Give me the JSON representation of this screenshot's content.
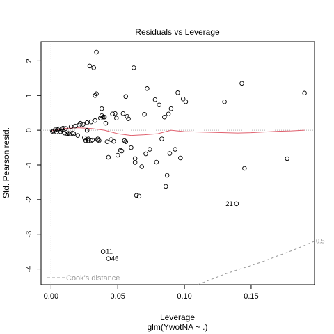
{
  "chart_data": {
    "type": "scatter",
    "title": "Residuals vs Leverage",
    "xlabel": "Leverage",
    "xsublabel": "glm(YwotNA ~ .)",
    "ylabel": "Std. Pearson resid.",
    "xlim": [
      -0.0075,
      0.1975
    ],
    "ylim": [
      -4.45,
      2.55
    ],
    "xticks": [
      0.0,
      0.05,
      0.1,
      0.15
    ],
    "xtick_labels": [
      "0.00",
      "0.05",
      "0.10",
      "0.15"
    ],
    "yticks": [
      -4,
      -3,
      -2,
      -1,
      0,
      1,
      2
    ],
    "ytick_labels": [
      "-4",
      "-3",
      "-2",
      "-1",
      "0",
      "1",
      "2"
    ],
    "grid": false,
    "points": [
      [
        0.001,
        -0.03
      ],
      [
        0.002,
        -0.02
      ],
      [
        0.003,
        0.01
      ],
      [
        0.004,
        -0.05
      ],
      [
        0.005,
        0.02
      ],
      [
        0.006,
        0.04
      ],
      [
        0.007,
        -0.04
      ],
      [
        0.008,
        0.03
      ],
      [
        0.009,
        0.06
      ],
      [
        0.01,
        -0.08
      ],
      [
        0.011,
        0.05
      ],
      [
        0.012,
        -0.1
      ],
      [
        0.013,
        -0.09
      ],
      [
        0.014,
        -0.11
      ],
      [
        0.015,
        0.1
      ],
      [
        0.016,
        -0.08
      ],
      [
        0.017,
        -0.1
      ],
      [
        0.018,
        0.12
      ],
      [
        0.02,
        -0.15
      ],
      [
        0.021,
        0.15
      ],
      [
        0.022,
        0.2
      ],
      [
        0.024,
        0.17
      ],
      [
        0.025,
        -0.22
      ],
      [
        0.026,
        -0.3
      ],
      [
        0.027,
        0.22
      ],
      [
        0.028,
        -0.3
      ],
      [
        0.028,
        -0.25
      ],
      [
        0.029,
        1.85
      ],
      [
        0.03,
        -0.3
      ],
      [
        0.03,
        0.24
      ],
      [
        0.031,
        -0.28
      ],
      [
        0.032,
        1.8
      ],
      [
        0.033,
        1.0
      ],
      [
        0.033,
        0.28
      ],
      [
        0.034,
        1.05
      ],
      [
        0.034,
        2.25
      ],
      [
        0.035,
        -0.28
      ],
      [
        0.035,
        -0.25
      ],
      [
        0.036,
        -0.3
      ],
      [
        0.037,
        0.35
      ],
      [
        0.038,
        0.62
      ],
      [
        0.038,
        0.42
      ],
      [
        0.039,
        0.38
      ],
      [
        0.04,
        0.38
      ],
      [
        0.041,
        0.2
      ],
      [
        0.042,
        -0.33
      ],
      [
        0.043,
        -0.78
      ],
      [
        0.045,
        -0.27
      ],
      [
        0.046,
        0.47
      ],
      [
        0.047,
        -0.32
      ],
      [
        0.048,
        0.48
      ],
      [
        0.049,
        0.35
      ],
      [
        0.05,
        -0.72
      ],
      [
        0.052,
        -0.58
      ],
      [
        0.053,
        -0.6
      ],
      [
        0.054,
        0.48
      ],
      [
        0.055,
        -0.3
      ],
      [
        0.056,
        -0.33
      ],
      [
        0.056,
        0.97
      ],
      [
        0.057,
        0.4
      ],
      [
        0.058,
        0.33
      ],
      [
        0.06,
        -0.5
      ],
      [
        0.062,
        1.8
      ],
      [
        0.063,
        -0.82
      ],
      [
        0.063,
        -0.93
      ],
      [
        0.064,
        -1.88
      ],
      [
        0.066,
        -1.9
      ],
      [
        0.068,
        -1.05
      ],
      [
        0.07,
        0.46
      ],
      [
        0.071,
        -0.68
      ],
      [
        0.072,
        1.2
      ],
      [
        0.074,
        -0.55
      ],
      [
        0.078,
        0.88
      ],
      [
        0.079,
        -0.92
      ],
      [
        0.081,
        0.73
      ],
      [
        0.083,
        -0.25
      ],
      [
        0.085,
        0.38
      ],
      [
        0.086,
        -1.62
      ],
      [
        0.087,
        -1.3
      ],
      [
        0.088,
        0.47
      ],
      [
        0.089,
        -0.67
      ],
      [
        0.09,
        0.62
      ],
      [
        0.093,
        -0.55
      ],
      [
        0.095,
        1.08
      ],
      [
        0.097,
        -0.8
      ],
      [
        0.099,
        0.9
      ],
      [
        0.101,
        0.82
      ],
      [
        0.13,
        0.82
      ],
      [
        0.143,
        1.35
      ],
      [
        0.145,
        -1.1
      ],
      [
        0.177,
        -0.82
      ],
      [
        0.19,
        1.07
      ],
      [
        0.027,
        0.0
      ]
    ],
    "labeled_points": [
      {
        "label": "11",
        "x": 0.039,
        "y": -3.5
      },
      {
        "label": "46",
        "x": 0.043,
        "y": -3.7
      },
      {
        "label": "21",
        "x": 0.139,
        "y": -2.12
      }
    ],
    "smooth_line": {
      "color": "#e0606e",
      "x": [
        0.0,
        0.01,
        0.02,
        0.03,
        0.04,
        0.05,
        0.06,
        0.07,
        0.08,
        0.09,
        0.1,
        0.11,
        0.12,
        0.13,
        0.14,
        0.15,
        0.16,
        0.17,
        0.18,
        0.19
      ],
      "y": [
        -0.02,
        0.05,
        0.07,
        0.05,
        0.0,
        -0.1,
        -0.15,
        -0.13,
        -0.1,
        0.0,
        -0.04,
        -0.05,
        -0.06,
        -0.07,
        -0.08,
        -0.07,
        -0.05,
        -0.03,
        -0.02,
        0.0
      ]
    },
    "cooks_distance": {
      "legend": "Cook's distance",
      "contour_label": "0.5",
      "color": "#9a9a9a",
      "x": [
        0.11,
        0.12,
        0.13,
        0.14,
        0.15,
        0.16,
        0.17,
        0.18,
        0.1975
      ],
      "y": [
        -4.45,
        -4.3,
        -4.15,
        -4.02,
        -3.9,
        -3.77,
        -3.62,
        -3.48,
        -3.2
      ]
    }
  }
}
